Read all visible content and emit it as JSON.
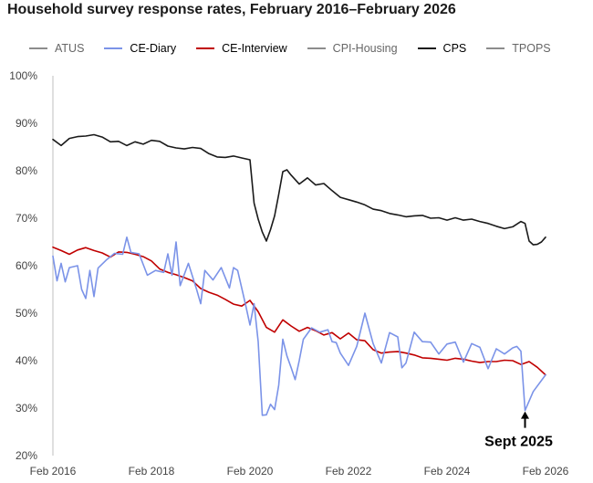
{
  "chart_data": {
    "type": "line",
    "title": "Household survey response rates, February 2016–February 2026",
    "xlabel": "",
    "ylabel": "",
    "x_tick_labels": [
      "Feb 2016",
      "Feb 2018",
      "Feb 2020",
      "Feb 2022",
      "Feb 2024",
      "Feb 2026"
    ],
    "y_tick_labels": [
      "20%",
      "30%",
      "40%",
      "50%",
      "60%",
      "70%",
      "80%",
      "90%",
      "100%"
    ],
    "ylim": [
      20,
      100
    ],
    "xlim": [
      "2016-02",
      "2026-02"
    ],
    "grid": false,
    "legend_position": "top",
    "legend": [
      {
        "name": "ATUS",
        "color": "#8c8c8c",
        "text_color": "#666666"
      },
      {
        "name": "CE-Diary",
        "color": "#7b93e8",
        "text_color": "#000000"
      },
      {
        "name": "CE-Interview",
        "color": "#c00000",
        "text_color": "#000000"
      },
      {
        "name": "CPI-Housing",
        "color": "#8c8c8c",
        "text_color": "#666666"
      },
      {
        "name": "CPS",
        "color": "#1a1a1a",
        "text_color": "#000000"
      },
      {
        "name": "TPOPS",
        "color": "#8c8c8c",
        "text_color": "#666666"
      }
    ],
    "series": [
      {
        "name": "CPS",
        "color": "#1a1a1a",
        "points": [
          [
            "2016-02",
            86.6
          ],
          [
            "2016-04",
            85.3
          ],
          [
            "2016-06",
            86.8
          ],
          [
            "2016-08",
            87.2
          ],
          [
            "2016-10",
            87.3
          ],
          [
            "2016-12",
            87.6
          ],
          [
            "2017-02",
            87.1
          ],
          [
            "2017-04",
            86.1
          ],
          [
            "2017-06",
            86.2
          ],
          [
            "2017-08",
            85.3
          ],
          [
            "2017-10",
            86.1
          ],
          [
            "2017-12",
            85.6
          ],
          [
            "2018-02",
            86.4
          ],
          [
            "2018-04",
            86.2
          ],
          [
            "2018-06",
            85.2
          ],
          [
            "2018-08",
            84.8
          ],
          [
            "2018-10",
            84.6
          ],
          [
            "2018-12",
            84.9
          ],
          [
            "2019-02",
            84.7
          ],
          [
            "2019-04",
            83.6
          ],
          [
            "2019-06",
            82.9
          ],
          [
            "2019-08",
            82.8
          ],
          [
            "2019-10",
            83.1
          ],
          [
            "2019-12",
            82.7
          ],
          [
            "2020-02",
            82.3
          ],
          [
            "2020-03",
            73.2
          ],
          [
            "2020-04",
            69.8
          ],
          [
            "2020-05",
            67.1
          ],
          [
            "2020-06",
            65.2
          ],
          [
            "2020-07",
            67.6
          ],
          [
            "2020-08",
            70.5
          ],
          [
            "2020-09",
            75.0
          ],
          [
            "2020-10",
            79.8
          ],
          [
            "2020-11",
            80.2
          ],
          [
            "2020-12",
            79.1
          ],
          [
            "2021-02",
            77.2
          ],
          [
            "2021-04",
            78.5
          ],
          [
            "2021-06",
            77.0
          ],
          [
            "2021-08",
            77.3
          ],
          [
            "2021-10",
            75.8
          ],
          [
            "2021-12",
            74.4
          ],
          [
            "2022-02",
            73.9
          ],
          [
            "2022-04",
            73.4
          ],
          [
            "2022-06",
            72.8
          ],
          [
            "2022-08",
            71.9
          ],
          [
            "2022-10",
            71.6
          ],
          [
            "2022-12",
            71.0
          ],
          [
            "2023-02",
            70.7
          ],
          [
            "2023-04",
            70.3
          ],
          [
            "2023-06",
            70.5
          ],
          [
            "2023-08",
            70.6
          ],
          [
            "2023-10",
            70.0
          ],
          [
            "2023-12",
            70.1
          ],
          [
            "2024-02",
            69.6
          ],
          [
            "2024-04",
            70.1
          ],
          [
            "2024-06",
            69.6
          ],
          [
            "2024-08",
            69.8
          ],
          [
            "2024-10",
            69.3
          ],
          [
            "2024-12",
            68.9
          ],
          [
            "2025-02",
            68.3
          ],
          [
            "2025-04",
            67.8
          ],
          [
            "2025-06",
            68.2
          ],
          [
            "2025-08",
            69.3
          ],
          [
            "2025-09",
            68.9
          ],
          [
            "2025-10",
            65.2
          ],
          [
            "2025-11",
            64.4
          ],
          [
            "2025-12",
            64.5
          ],
          [
            "2026-01",
            65.0
          ],
          [
            "2026-02",
            66.0
          ]
        ]
      },
      {
        "name": "CE-Interview",
        "color": "#c00000",
        "points": [
          [
            "2016-02",
            63.9
          ],
          [
            "2016-04",
            63.2
          ],
          [
            "2016-06",
            62.4
          ],
          [
            "2016-08",
            63.3
          ],
          [
            "2016-10",
            63.8
          ],
          [
            "2016-12",
            63.2
          ],
          [
            "2017-02",
            62.7
          ],
          [
            "2017-04",
            61.8
          ],
          [
            "2017-06",
            62.9
          ],
          [
            "2017-08",
            62.8
          ],
          [
            "2017-10",
            62.4
          ],
          [
            "2017-12",
            61.9
          ],
          [
            "2018-02",
            61.0
          ],
          [
            "2018-04",
            59.3
          ],
          [
            "2018-06",
            58.6
          ],
          [
            "2018-08",
            58.1
          ],
          [
            "2018-10",
            57.5
          ],
          [
            "2018-12",
            56.8
          ],
          [
            "2019-02",
            55.2
          ],
          [
            "2019-04",
            54.4
          ],
          [
            "2019-06",
            53.8
          ],
          [
            "2019-08",
            52.9
          ],
          [
            "2019-10",
            51.9
          ],
          [
            "2019-12",
            51.5
          ],
          [
            "2020-02",
            52.7
          ],
          [
            "2020-04",
            50.3
          ],
          [
            "2020-06",
            47.0
          ],
          [
            "2020-08",
            46.0
          ],
          [
            "2020-10",
            48.6
          ],
          [
            "2020-12",
            47.3
          ],
          [
            "2021-02",
            46.2
          ],
          [
            "2021-04",
            47.0
          ],
          [
            "2021-06",
            46.3
          ],
          [
            "2021-08",
            45.4
          ],
          [
            "2021-10",
            45.9
          ],
          [
            "2021-12",
            44.6
          ],
          [
            "2022-02",
            45.8
          ],
          [
            "2022-04",
            44.4
          ],
          [
            "2022-06",
            44.2
          ],
          [
            "2022-08",
            42.3
          ],
          [
            "2022-10",
            41.6
          ],
          [
            "2022-12",
            41.8
          ],
          [
            "2023-02",
            41.9
          ],
          [
            "2023-04",
            41.6
          ],
          [
            "2023-06",
            41.2
          ],
          [
            "2023-08",
            40.6
          ],
          [
            "2023-10",
            40.5
          ],
          [
            "2023-12",
            40.3
          ],
          [
            "2024-02",
            40.1
          ],
          [
            "2024-04",
            40.5
          ],
          [
            "2024-06",
            40.3
          ],
          [
            "2024-08",
            39.9
          ],
          [
            "2024-10",
            39.6
          ],
          [
            "2024-12",
            39.8
          ],
          [
            "2025-02",
            39.8
          ],
          [
            "2025-04",
            40.1
          ],
          [
            "2025-06",
            40.0
          ],
          [
            "2025-08",
            39.2
          ],
          [
            "2025-10",
            39.8
          ],
          [
            "2025-12",
            38.6
          ],
          [
            "2026-02",
            37.0
          ]
        ]
      },
      {
        "name": "CE-Diary",
        "color": "#7b93e8",
        "points": [
          [
            "2016-02",
            62.0
          ],
          [
            "2016-03",
            56.8
          ],
          [
            "2016-04",
            60.5
          ],
          [
            "2016-05",
            56.6
          ],
          [
            "2016-06",
            59.6
          ],
          [
            "2016-08",
            60.0
          ],
          [
            "2016-09",
            55.0
          ],
          [
            "2016-10",
            53.1
          ],
          [
            "2016-11",
            59.0
          ],
          [
            "2016-12",
            53.5
          ],
          [
            "2017-01",
            59.5
          ],
          [
            "2017-03",
            61.2
          ],
          [
            "2017-05",
            62.6
          ],
          [
            "2017-07",
            62.4
          ],
          [
            "2017-08",
            66.0
          ],
          [
            "2017-09",
            62.8
          ],
          [
            "2017-11",
            62.5
          ],
          [
            "2018-01",
            58.0
          ],
          [
            "2018-03",
            59.0
          ],
          [
            "2018-05",
            58.6
          ],
          [
            "2018-06",
            62.5
          ],
          [
            "2018-07",
            58.0
          ],
          [
            "2018-08",
            65.0
          ],
          [
            "2018-09",
            55.8
          ],
          [
            "2018-11",
            60.5
          ],
          [
            "2019-01",
            55.0
          ],
          [
            "2019-02",
            52.0
          ],
          [
            "2019-03",
            59.0
          ],
          [
            "2019-05",
            57.0
          ],
          [
            "2019-07",
            59.6
          ],
          [
            "2019-09",
            55.3
          ],
          [
            "2019-10",
            59.6
          ],
          [
            "2019-11",
            59.0
          ],
          [
            "2020-01",
            51.5
          ],
          [
            "2020-02",
            47.5
          ],
          [
            "2020-03",
            52.0
          ],
          [
            "2020-04",
            44.0
          ],
          [
            "2020-05",
            28.5
          ],
          [
            "2020-06",
            28.6
          ],
          [
            "2020-07",
            30.8
          ],
          [
            "2020-08",
            29.7
          ],
          [
            "2020-09",
            34.8
          ],
          [
            "2020-10",
            44.5
          ],
          [
            "2020-11",
            41.0
          ],
          [
            "2020-12",
            38.6
          ],
          [
            "2021-01",
            36.0
          ],
          [
            "2021-02",
            40.0
          ],
          [
            "2021-03",
            44.5
          ],
          [
            "2021-05",
            46.9
          ],
          [
            "2021-07",
            46.0
          ],
          [
            "2021-09",
            46.5
          ],
          [
            "2021-10",
            44.0
          ],
          [
            "2021-11",
            43.8
          ],
          [
            "2021-12",
            41.6
          ],
          [
            "2022-02",
            39.0
          ],
          [
            "2022-04",
            43.0
          ],
          [
            "2022-06",
            50.0
          ],
          [
            "2022-08",
            43.6
          ],
          [
            "2022-10",
            39.5
          ],
          [
            "2022-12",
            45.9
          ],
          [
            "2023-02",
            45.0
          ],
          [
            "2023-03",
            38.5
          ],
          [
            "2023-04",
            39.5
          ],
          [
            "2023-06",
            46.0
          ],
          [
            "2023-08",
            44.0
          ],
          [
            "2023-10",
            43.9
          ],
          [
            "2023-12",
            41.4
          ],
          [
            "2024-02",
            43.5
          ],
          [
            "2024-04",
            43.9
          ],
          [
            "2024-06",
            39.7
          ],
          [
            "2024-08",
            43.6
          ],
          [
            "2024-10",
            42.8
          ],
          [
            "2024-12",
            38.3
          ],
          [
            "2025-02",
            42.5
          ],
          [
            "2025-04",
            41.4
          ],
          [
            "2025-06",
            42.7
          ],
          [
            "2025-07",
            43.0
          ],
          [
            "2025-08",
            42.0
          ],
          [
            "2025-09",
            29.5
          ],
          [
            "2025-11",
            33.5
          ],
          [
            "2026-02",
            37.0
          ]
        ]
      }
    ],
    "annotations": [
      {
        "text": "Sept 2025",
        "target": [
          "2025-09",
          29.5
        ],
        "arrow": true
      }
    ]
  }
}
